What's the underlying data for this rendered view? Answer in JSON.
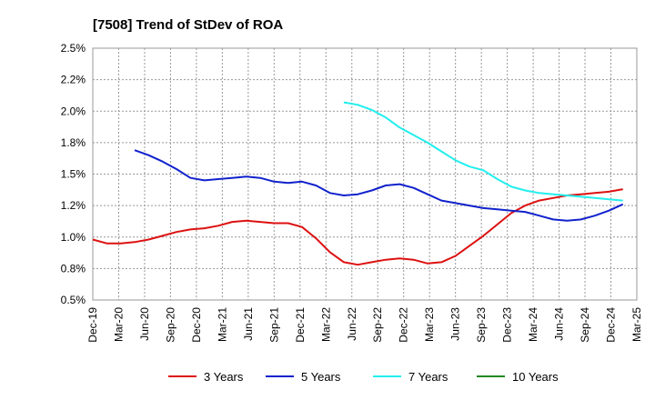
{
  "chart_data": {
    "type": "line",
    "title": "[7508]  Trend of StDev of ROA",
    "xlabel": "",
    "ylabel": "",
    "ylim": [
      0.005,
      0.025
    ],
    "y_ticks": [
      "0.5%",
      "0.8%",
      "1.0%",
      "1.2%",
      "1.5%",
      "1.8%",
      "2.0%",
      "2.2%",
      "2.5%"
    ],
    "y_tick_values": [
      0.005,
      0.0075,
      0.01,
      0.0125,
      0.015,
      0.0175,
      0.02,
      0.0225,
      0.025
    ],
    "x_ticks": [
      "Dec-19",
      "Mar-20",
      "Jun-20",
      "Sep-20",
      "Dec-20",
      "Mar-21",
      "Jun-21",
      "Sep-21",
      "Dec-21",
      "Mar-22",
      "Jun-22",
      "Sep-22",
      "Dec-22",
      "Mar-23",
      "Jun-23",
      "Sep-23",
      "Dec-23",
      "Mar-24",
      "Jun-24",
      "Sep-24",
      "Dec-24",
      "Mar-25"
    ],
    "grid": true,
    "legend_position": "bottom",
    "series": [
      {
        "name": "3 Years",
        "color": "#dd1111",
        "values": [
          0.0098,
          0.0095,
          0.0095,
          0.0096,
          0.0098,
          0.0101,
          0.0104,
          0.0106,
          0.0107,
          0.0109,
          0.0112,
          0.0113,
          0.0112,
          0.0111,
          0.0111,
          0.0108,
          0.0099,
          0.0088,
          0.008,
          0.0078,
          0.008,
          0.0082,
          0.0083,
          0.0082,
          0.0079,
          0.008,
          0.0085,
          0.0093,
          0.0101,
          0.011,
          0.0119,
          0.0125,
          0.0129,
          0.0131,
          0.0133,
          0.0134,
          0.0135,
          0.0136,
          0.0138
        ]
      },
      {
        "name": "5 Years",
        "color": "#1122cc",
        "values": [
          null,
          null,
          null,
          0.0169,
          0.0165,
          0.016,
          0.0154,
          0.0147,
          0.0145,
          0.0146,
          0.0147,
          0.0148,
          0.0147,
          0.0144,
          0.0143,
          0.0144,
          0.0141,
          0.0135,
          0.0133,
          0.0134,
          0.0137,
          0.0141,
          0.0142,
          0.0139,
          0.0134,
          0.0129,
          0.0127,
          0.0125,
          0.0123,
          0.0122,
          0.0121,
          0.012,
          0.0117,
          0.0114,
          0.0113,
          0.0114,
          0.0117,
          0.0121,
          0.0126
        ]
      },
      {
        "name": "7 Years",
        "color": "#22eeee",
        "values": [
          null,
          null,
          null,
          null,
          null,
          null,
          null,
          null,
          null,
          null,
          null,
          null,
          null,
          null,
          null,
          null,
          null,
          null,
          0.0207,
          0.0205,
          0.0201,
          0.0195,
          0.0187,
          0.0181,
          0.0175,
          0.0168,
          0.0161,
          0.0156,
          0.0153,
          0.0146,
          0.014,
          0.0137,
          0.0135,
          0.0134,
          0.0133,
          0.0132,
          0.0131,
          0.013,
          0.0129
        ]
      },
      {
        "name": "10 Years",
        "color": "#228822",
        "values": [
          null,
          null,
          null,
          null,
          null,
          null,
          null,
          null,
          null,
          null,
          null,
          null,
          null,
          null,
          null,
          null,
          null,
          null,
          null,
          null,
          null,
          null,
          null,
          null,
          null,
          null,
          null,
          null,
          null,
          null,
          null,
          null,
          null,
          null,
          null,
          null,
          null,
          null,
          null
        ]
      }
    ]
  }
}
